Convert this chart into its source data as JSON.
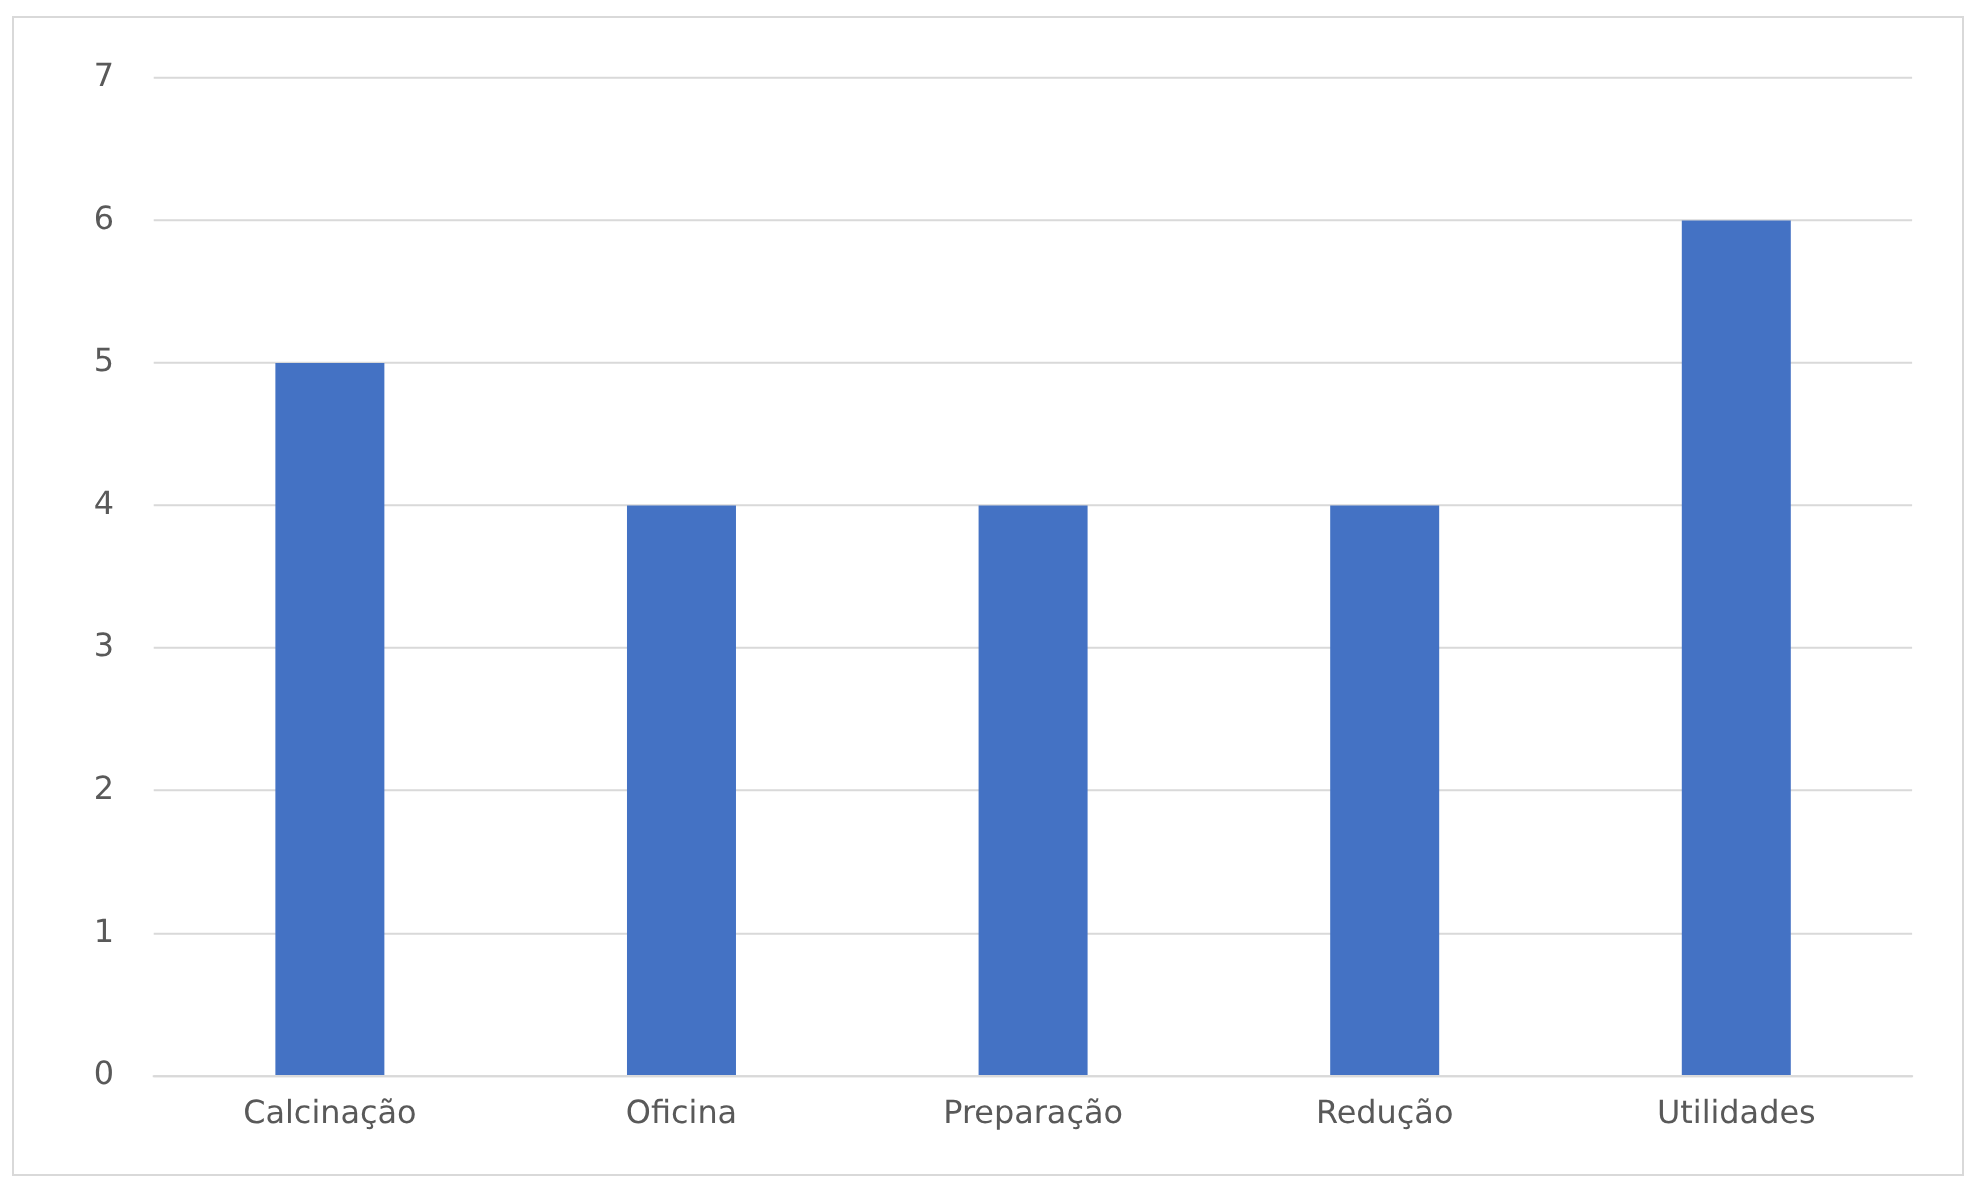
{
  "chart_data": {
    "type": "bar",
    "categories": [
      "Calcinação",
      "Oficina",
      "Preparação",
      "Redução",
      "Utilidades"
    ],
    "values": [
      5,
      4,
      4,
      4,
      6
    ],
    "color": "#4472c4",
    "ylim": [
      0,
      7
    ],
    "yticks": [
      0,
      1,
      2,
      3,
      4,
      5,
      6,
      7
    ],
    "grid": "y"
  }
}
